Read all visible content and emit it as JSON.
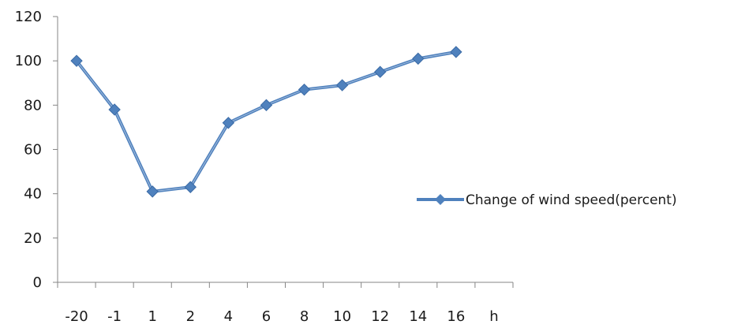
{
  "chart_data": {
    "type": "line",
    "categories": [
      "-20",
      "-1",
      "1",
      "2",
      "4",
      "6",
      "8",
      "10",
      "12",
      "14",
      "16"
    ],
    "series": [
      {
        "name": "Change of wind speed(percent)",
        "values": [
          100,
          78,
          41,
          43,
          72,
          80,
          87,
          89,
          95,
          101,
          104
        ],
        "color": "#4f81bd"
      }
    ],
    "xlabel": "h",
    "ylabel": "",
    "ylim": [
      0,
      120
    ],
    "yticks": [
      0,
      20,
      40,
      60,
      80,
      100,
      120
    ],
    "grid": false,
    "legend": "right"
  }
}
